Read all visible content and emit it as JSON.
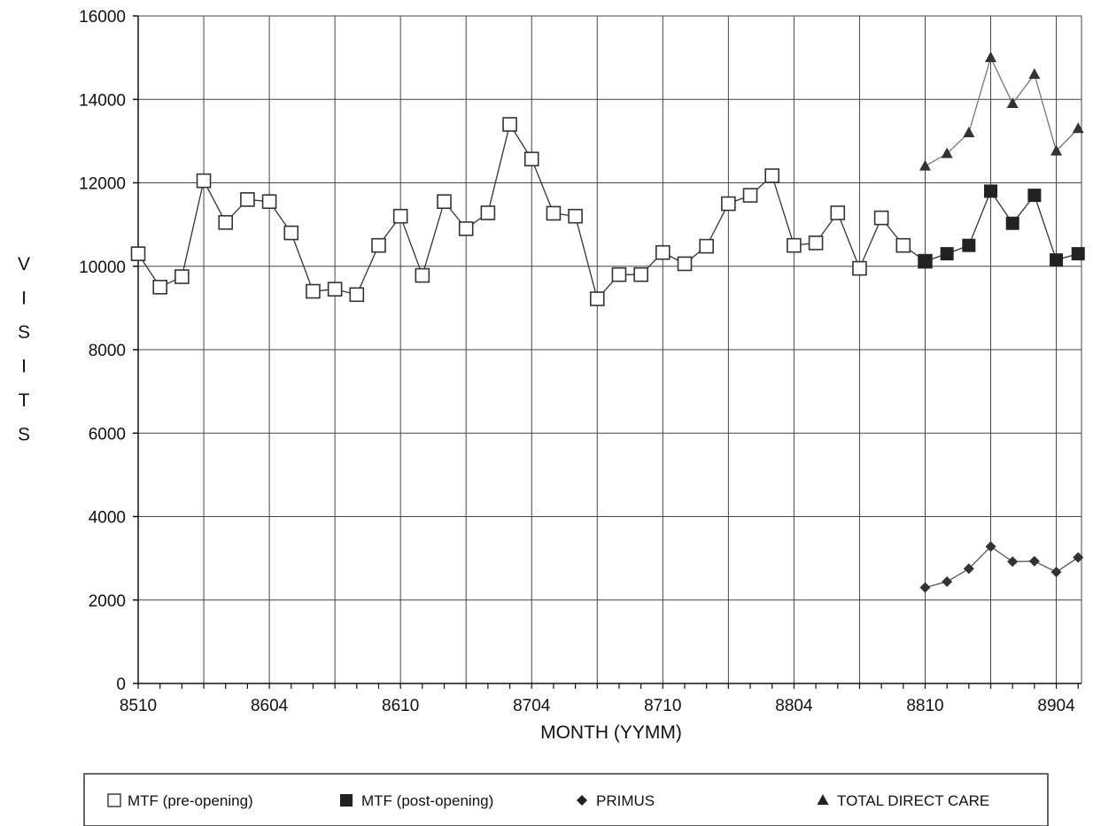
{
  "chart_data": {
    "type": "line",
    "title": "",
    "xlabel": "MONTH (YYMM)",
    "ylabel": "VISITS",
    "ylim": [
      0,
      16000
    ],
    "y_ticks": [
      "0",
      "2000",
      "4000",
      "6000",
      "8000",
      "10000",
      "12000",
      "14000",
      "16000"
    ],
    "x_tick_labels": [
      "8510",
      "8604",
      "8610",
      "8704",
      "8710",
      "8804",
      "8810",
      "8904"
    ],
    "grid": true,
    "legend_position": "bottom",
    "x_categories": [
      "8510",
      "8511",
      "8512",
      "8601",
      "8602",
      "8603",
      "8604",
      "8605",
      "8606",
      "8607",
      "8608",
      "8609",
      "8610",
      "8611",
      "8612",
      "8701",
      "8702",
      "8703",
      "8704",
      "8705",
      "8706",
      "8707",
      "8708",
      "8709",
      "8710",
      "8711",
      "8712",
      "8801",
      "8802",
      "8803",
      "8804",
      "8805",
      "8806",
      "8807",
      "8808",
      "8809",
      "8810",
      "8811",
      "8812",
      "8901",
      "8902",
      "8903",
      "8904",
      "8905"
    ],
    "series": [
      {
        "name": "MTF (pre-opening)",
        "marker": "open-square",
        "color": "#333333",
        "x": [
          "8510",
          "8511",
          "8512",
          "8601",
          "8602",
          "8603",
          "8604",
          "8605",
          "8606",
          "8607",
          "8608",
          "8609",
          "8610",
          "8611",
          "8612",
          "8701",
          "8702",
          "8703",
          "8704",
          "8705",
          "8706",
          "8707",
          "8708",
          "8709",
          "8710",
          "8711",
          "8712",
          "8801",
          "8802",
          "8803",
          "8804",
          "8805",
          "8806",
          "8807",
          "8808",
          "8809",
          "8810"
        ],
        "values": [
          10300,
          9500,
          9750,
          12050,
          11050,
          11600,
          11550,
          10800,
          9400,
          9450,
          9320,
          10500,
          11200,
          9780,
          11550,
          10900,
          11280,
          13400,
          12570,
          11270,
          11200,
          9220,
          9800,
          9800,
          10330,
          10060,
          10480,
          11500,
          11700,
          12170,
          10500,
          10560,
          11280,
          9950,
          11160,
          10500,
          10120
        ]
      },
      {
        "name": "MTF (post-opening)",
        "marker": "filled-square",
        "color": "#333333",
        "x": [
          "8810",
          "8811",
          "8812",
          "8901",
          "8902",
          "8903",
          "8904",
          "8905"
        ],
        "values": [
          10120,
          10300,
          10500,
          11800,
          11030,
          11700,
          10150,
          10300
        ]
      },
      {
        "name": "PRIMUS",
        "marker": "diamond",
        "color": "#555555",
        "x": [
          "8810",
          "8811",
          "8812",
          "8901",
          "8902",
          "8903",
          "8904",
          "8905"
        ],
        "values": [
          2300,
          2440,
          2750,
          3280,
          2920,
          2930,
          2670,
          3020
        ]
      },
      {
        "name": "TOTAL DIRECT CARE",
        "marker": "triangle",
        "color": "#777777",
        "x": [
          "8810",
          "8811",
          "8812",
          "8901",
          "8902",
          "8903",
          "8904",
          "8905"
        ],
        "values": [
          12400,
          12700,
          13200,
          15000,
          13900,
          14600,
          12760,
          13300
        ]
      }
    ]
  }
}
